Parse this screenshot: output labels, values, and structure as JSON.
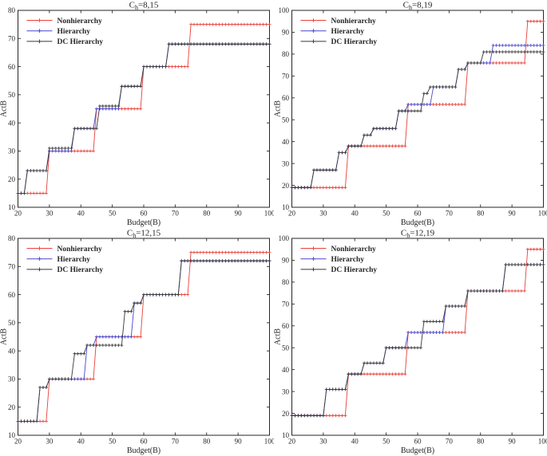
{
  "figure": {
    "background": "#ffffff",
    "frame_color": "#262626",
    "tick_color": "#262626",
    "text_color": "#262626"
  },
  "legend": {
    "entries": [
      "Nonhierarchy",
      "Hierarchy",
      "DC Hierarchy"
    ],
    "position": "top-left",
    "boxed": false
  },
  "chart_data": [
    {
      "type": "line",
      "step": true,
      "title_base": "C",
      "title_sub": "h",
      "title_rest": "=8,15",
      "title_text": "C_h=8,15",
      "xlabel": "Budget(B)",
      "ylabel": "ActB",
      "xlim": [
        20,
        100
      ],
      "ylim": [
        10,
        80
      ],
      "xticks": [
        20,
        30,
        40,
        50,
        60,
        70,
        80,
        90,
        100
      ],
      "yticks": [
        10,
        20,
        30,
        40,
        50,
        60,
        70,
        80
      ],
      "marker": "plus",
      "sample_step": 1,
      "series": [
        {
          "name": "Nonhierarchy",
          "color": "#e8403a",
          "steps": [
            [
              20,
              15
            ],
            [
              30,
              30
            ],
            [
              45,
              45
            ],
            [
              60,
              60
            ],
            [
              75,
              75
            ]
          ]
        },
        {
          "name": "Hierarchy",
          "color": "#4945cf",
          "steps": [
            [
              20,
              15
            ],
            [
              23,
              23
            ],
            [
              30,
              30
            ],
            [
              38,
              38
            ],
            [
              45,
              45
            ],
            [
              53,
              53
            ],
            [
              60,
              60
            ],
            [
              68,
              68
            ]
          ]
        },
        {
          "name": "DC Hierarchy",
          "color": "#373737",
          "steps": [
            [
              20,
              15
            ],
            [
              23,
              23
            ],
            [
              30,
              31
            ],
            [
              38,
              38
            ],
            [
              46,
              46
            ],
            [
              53,
              53
            ],
            [
              60,
              60
            ],
            [
              68,
              68
            ]
          ]
        }
      ]
    },
    {
      "type": "line",
      "step": true,
      "title_base": "C",
      "title_sub": "h",
      "title_rest": "=8,19",
      "title_text": "C_h=8,19",
      "xlabel": "Budget(B)",
      "ylabel": "ActB",
      "xlim": [
        20,
        100
      ],
      "ylim": [
        10,
        100
      ],
      "xticks": [
        20,
        30,
        40,
        50,
        60,
        70,
        80,
        90,
        100
      ],
      "yticks": [
        10,
        20,
        30,
        40,
        50,
        60,
        70,
        80,
        90,
        100
      ],
      "marker": "plus",
      "sample_step": 1,
      "series": [
        {
          "name": "Nonhierarchy",
          "color": "#e8403a",
          "steps": [
            [
              20,
              19
            ],
            [
              38,
              38
            ],
            [
              57,
              57
            ],
            [
              76,
              76
            ],
            [
              95,
              95
            ]
          ]
        },
        {
          "name": "Hierarchy",
          "color": "#4945cf",
          "steps": [
            [
              20,
              19
            ],
            [
              27,
              27
            ],
            [
              35,
              35
            ],
            [
              38,
              38
            ],
            [
              43,
              43
            ],
            [
              46,
              46
            ],
            [
              54,
              54
            ],
            [
              57,
              57
            ],
            [
              65,
              65
            ],
            [
              73,
              73
            ],
            [
              76,
              76
            ],
            [
              84,
              84
            ]
          ]
        },
        {
          "name": "DC Hierarchy",
          "color": "#373737",
          "steps": [
            [
              20,
              19
            ],
            [
              27,
              27
            ],
            [
              35,
              35
            ],
            [
              38,
              38
            ],
            [
              43,
              43
            ],
            [
              46,
              46
            ],
            [
              54,
              54
            ],
            [
              62,
              62
            ],
            [
              64,
              65
            ],
            [
              73,
              73
            ],
            [
              76,
              76
            ],
            [
              81,
              81
            ]
          ]
        }
      ]
    },
    {
      "type": "line",
      "step": true,
      "title_base": "C",
      "title_sub": "h",
      "title_rest": "=12,15",
      "title_text": "C_h=12,15",
      "xlabel": "Budget(B)",
      "ylabel": "ActB",
      "xlim": [
        20,
        100
      ],
      "ylim": [
        10,
        80
      ],
      "xticks": [
        20,
        30,
        40,
        50,
        60,
        70,
        80,
        90,
        100
      ],
      "yticks": [
        10,
        20,
        30,
        40,
        50,
        60,
        70,
        80
      ],
      "marker": "plus",
      "sample_step": 1,
      "series": [
        {
          "name": "Nonhierarchy",
          "color": "#e8403a",
          "steps": [
            [
              20,
              15
            ],
            [
              30,
              30
            ],
            [
              45,
              45
            ],
            [
              60,
              60
            ],
            [
              75,
              75
            ]
          ]
        },
        {
          "name": "Hierarchy",
          "color": "#4945cf",
          "steps": [
            [
              20,
              15
            ],
            [
              27,
              27
            ],
            [
              30,
              30
            ],
            [
              42,
              42
            ],
            [
              45,
              45
            ],
            [
              57,
              57
            ],
            [
              60,
              60
            ],
            [
              72,
              72
            ]
          ]
        },
        {
          "name": "DC Hierarchy",
          "color": "#373737",
          "steps": [
            [
              20,
              15
            ],
            [
              27,
              27
            ],
            [
              30,
              30
            ],
            [
              38,
              39
            ],
            [
              42,
              42
            ],
            [
              54,
              54
            ],
            [
              57,
              57
            ],
            [
              60,
              60
            ],
            [
              72,
              72
            ]
          ]
        }
      ]
    },
    {
      "type": "line",
      "step": true,
      "title_base": "C",
      "title_sub": "h",
      "title_rest": "=12,19",
      "title_text": "C_h=12,19",
      "xlabel": "Budget(B)",
      "ylabel": "ActB",
      "xlim": [
        20,
        100
      ],
      "ylim": [
        10,
        100
      ],
      "xticks": [
        20,
        30,
        40,
        50,
        60,
        70,
        80,
        90,
        100
      ],
      "yticks": [
        10,
        20,
        30,
        40,
        50,
        60,
        70,
        80,
        90,
        100
      ],
      "marker": "plus",
      "sample_step": 1,
      "series": [
        {
          "name": "Nonhierarchy",
          "color": "#e8403a",
          "steps": [
            [
              20,
              19
            ],
            [
              38,
              38
            ],
            [
              57,
              57
            ],
            [
              76,
              76
            ],
            [
              95,
              95
            ]
          ]
        },
        {
          "name": "Hierarchy",
          "color": "#4945cf",
          "steps": [
            [
              20,
              19
            ],
            [
              31,
              31
            ],
            [
              38,
              38
            ],
            [
              43,
              43
            ],
            [
              50,
              50
            ],
            [
              57,
              57
            ],
            [
              69,
              69
            ],
            [
              76,
              76
            ],
            [
              88,
              88
            ]
          ]
        },
        {
          "name": "DC Hierarchy",
          "color": "#373737",
          "steps": [
            [
              20,
              19
            ],
            [
              31,
              31
            ],
            [
              38,
              38
            ],
            [
              43,
              43
            ],
            [
              50,
              50
            ],
            [
              62,
              62
            ],
            [
              69,
              69
            ],
            [
              76,
              76
            ],
            [
              88,
              88
            ]
          ]
        }
      ]
    }
  ]
}
